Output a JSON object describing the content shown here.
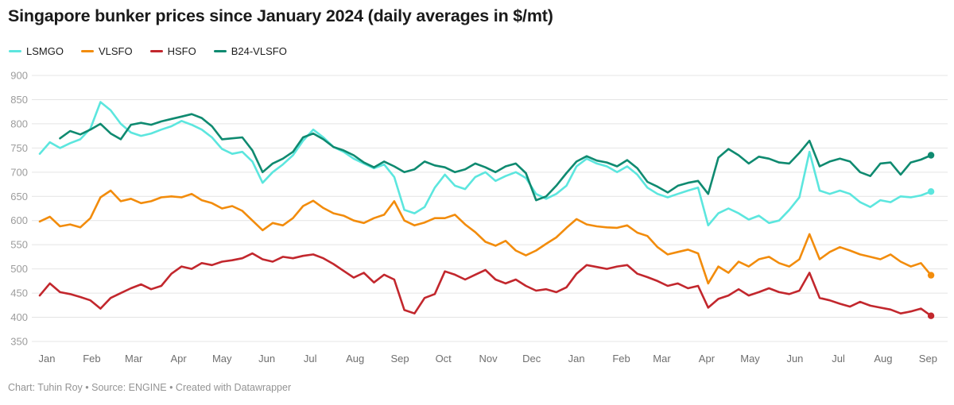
{
  "header": {
    "title": "Singapore bunker prices since January 2024 (daily averages in $/mt)"
  },
  "legend": {
    "items": [
      {
        "label": "LSMGO",
        "color": "#5ce6de"
      },
      {
        "label": "VLSFO",
        "color": "#f28c0c"
      },
      {
        "label": "HSFO",
        "color": "#c2272d"
      },
      {
        "label": "B24-VLSFO",
        "color": "#0f8a70"
      }
    ]
  },
  "footer": {
    "text": "Chart: Tuhin Roy • Source: ENGINE • Created with Datawrapper"
  },
  "chart_data": {
    "type": "line",
    "title": "Singapore bunker prices since January 2024 (daily averages in $/mt)",
    "xlabel": "",
    "ylabel": "$/mt",
    "ylim": [
      350,
      900
    ],
    "y_ticks": [
      350,
      400,
      450,
      500,
      550,
      600,
      650,
      700,
      750,
      800,
      850,
      900
    ],
    "grid": "horizontal",
    "legend_position": "top-left",
    "x_axis_months": [
      {
        "label": "Jan",
        "day": 0
      },
      {
        "label": "Feb",
        "day": 31
      },
      {
        "label": "Mar",
        "day": 60
      },
      {
        "label": "Apr",
        "day": 91
      },
      {
        "label": "May",
        "day": 121
      },
      {
        "label": "Jun",
        "day": 152
      },
      {
        "label": "Jul",
        "day": 182
      },
      {
        "label": "Aug",
        "day": 213
      },
      {
        "label": "Sep",
        "day": 244
      },
      {
        "label": "Oct",
        "day": 274
      },
      {
        "label": "Nov",
        "day": 305
      },
      {
        "label": "Dec",
        "day": 335
      },
      {
        "label": "Jan",
        "day": 366
      },
      {
        "label": "Feb",
        "day": 397
      },
      {
        "label": "Mar",
        "day": 425
      },
      {
        "label": "Apr",
        "day": 456
      },
      {
        "label": "May",
        "day": 486
      },
      {
        "label": "Jun",
        "day": 517
      },
      {
        "label": "Jul",
        "day": 547
      },
      {
        "label": "Aug",
        "day": 578
      },
      {
        "label": "Sep",
        "day": 609
      }
    ],
    "sampling": {
      "start_date": "2024-01-01",
      "end_date": "2025-09-08",
      "step_days": 7,
      "n_points": 89
    },
    "series": [
      {
        "name": "LSMGO",
        "color": "#5ce6de",
        "values": [
          738,
          762,
          750,
          760,
          768,
          790,
          845,
          828,
          800,
          782,
          775,
          780,
          788,
          795,
          806,
          798,
          788,
          772,
          748,
          738,
          742,
          722,
          678,
          700,
          716,
          735,
          765,
          788,
          772,
          752,
          742,
          728,
          718,
          708,
          716,
          690,
          622,
          615,
          628,
          668,
          695,
          672,
          665,
          690,
          700,
          682,
          692,
          700,
          688,
          655,
          645,
          655,
          672,
          712,
          728,
          718,
          712,
          700,
          712,
          695,
          668,
          655,
          648,
          655,
          662,
          668,
          590,
          615,
          625,
          615,
          602,
          610,
          595,
          600,
          622,
          648,
          742,
          662,
          655,
          662,
          655,
          638,
          628,
          642,
          638,
          650,
          648,
          652,
          660
        ]
      },
      {
        "name": "VLSFO",
        "color": "#f28c0c",
        "values": [
          598,
          608,
          588,
          592,
          586,
          605,
          648,
          662,
          640,
          645,
          636,
          640,
          648,
          650,
          648,
          655,
          642,
          636,
          625,
          630,
          620,
          600,
          580,
          595,
          590,
          605,
          630,
          641,
          626,
          615,
          610,
          600,
          595,
          605,
          612,
          640,
          600,
          590,
          596,
          605,
          605,
          612,
          592,
          576,
          556,
          548,
          558,
          538,
          528,
          538,
          552,
          565,
          585,
          603,
          592,
          588,
          586,
          585,
          590,
          575,
          568,
          545,
          530,
          535,
          540,
          532,
          470,
          505,
          492,
          515,
          505,
          520,
          525,
          512,
          505,
          520,
          572,
          520,
          535,
          545,
          538,
          530,
          525,
          520,
          530,
          515,
          505,
          512,
          487
        ]
      },
      {
        "name": "HSFO",
        "color": "#c2272d",
        "values": [
          445,
          470,
          452,
          448,
          442,
          435,
          418,
          440,
          450,
          460,
          468,
          458,
          465,
          490,
          505,
          500,
          512,
          508,
          515,
          518,
          522,
          532,
          520,
          515,
          525,
          522,
          527,
          530,
          522,
          510,
          496,
          482,
          492,
          472,
          488,
          478,
          415,
          408,
          440,
          448,
          495,
          488,
          478,
          488,
          498,
          478,
          470,
          478,
          465,
          455,
          458,
          452,
          462,
          490,
          508,
          504,
          500,
          505,
          508,
          490,
          483,
          475,
          465,
          470,
          460,
          465,
          420,
          438,
          445,
          458,
          445,
          452,
          460,
          452,
          448,
          455,
          492,
          440,
          435,
          428,
          422,
          432,
          424,
          420,
          416,
          408,
          412,
          418,
          403
        ]
      },
      {
        "name": "B24-VLSFO",
        "color": "#0f8a70",
        "values": [
          null,
          null,
          770,
          785,
          778,
          788,
          800,
          780,
          768,
          798,
          802,
          798,
          805,
          810,
          815,
          820,
          812,
          795,
          768,
          770,
          772,
          745,
          700,
          718,
          728,
          742,
          772,
          780,
          768,
          752,
          745,
          735,
          720,
          710,
          722,
          712,
          700,
          706,
          722,
          714,
          710,
          700,
          706,
          718,
          710,
          700,
          712,
          718,
          698,
          642,
          650,
          672,
          698,
          722,
          733,
          724,
          720,
          712,
          725,
          708,
          680,
          670,
          658,
          672,
          678,
          682,
          655,
          730,
          748,
          735,
          718,
          732,
          728,
          720,
          718,
          740,
          765,
          712,
          722,
          728,
          722,
          700,
          692,
          718,
          720,
          695,
          720,
          726,
          735
        ]
      }
    ]
  }
}
